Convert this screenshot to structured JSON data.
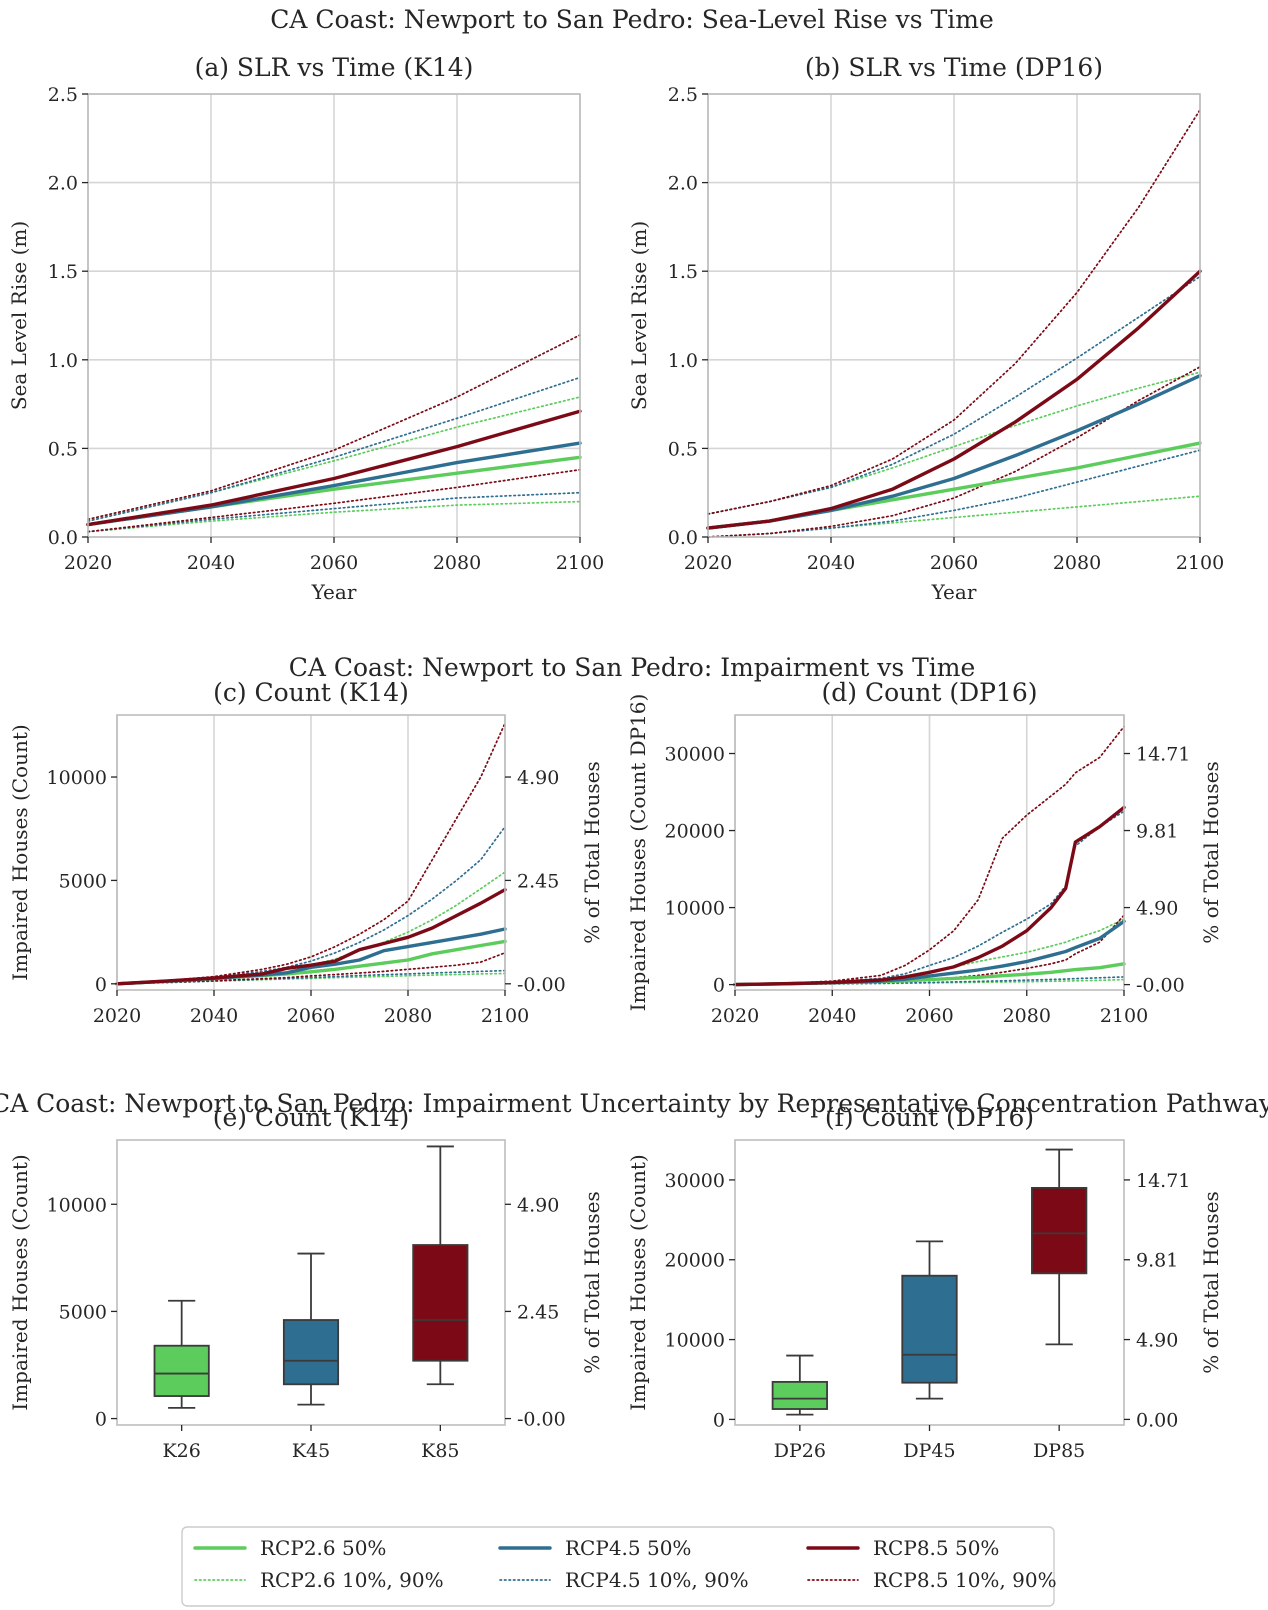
{
  "colors": {
    "rcp26": "#5ccc5c",
    "rcp45": "#2e6e91",
    "rcp85": "#7c0a16",
    "grid": "#d5d5d5",
    "axis": "#bdbdbd"
  },
  "figure": {
    "row1_title": "CA Coast: Newport to San Pedro: Sea-Level Rise vs Time",
    "row2_title": "CA Coast: Newport to San Pedro: Impairment vs Time",
    "row3_title": "CA Coast: Newport to San Pedro: Impairment Uncertainty by Representative Concentration Pathway"
  },
  "legend": {
    "items": [
      {
        "label": "RCP2.6 50%",
        "color": "#5ccc5c",
        "style": "solid"
      },
      {
        "label": "RCP4.5 50%",
        "color": "#2e6e91",
        "style": "solid"
      },
      {
        "label": "RCP8.5 50%",
        "color": "#7c0a16",
        "style": "solid"
      },
      {
        "label": "RCP2.6 10%, 90%",
        "color": "#5ccc5c",
        "style": "dotted"
      },
      {
        "label": "RCP4.5 10%, 90%",
        "color": "#2e6e91",
        "style": "dotted"
      },
      {
        "label": "RCP8.5 10%, 90%",
        "color": "#7c0a16",
        "style": "dotted"
      }
    ]
  },
  "chart_data": [
    {
      "id": "a",
      "type": "line",
      "title": "(a) SLR vs Time (K14)",
      "xlabel": "Year",
      "ylabel": "Sea Level Rise (m)",
      "xlim": [
        2020,
        2100
      ],
      "ylim": [
        0,
        2.5
      ],
      "xticks": [
        "2020",
        "2040",
        "2060",
        "2080",
        "2100"
      ],
      "yticks": [
        "0.0",
        "0.5",
        "1.0",
        "1.5",
        "2.0",
        "2.5"
      ],
      "x": [
        2020,
        2040,
        2060,
        2080,
        2100
      ],
      "series": [
        {
          "name": "RCP2.6 50%",
          "style": "solid",
          "color": "#5ccc5c",
          "values": [
            0.07,
            0.17,
            0.27,
            0.36,
            0.45
          ]
        },
        {
          "name": "RCP4.5 50%",
          "style": "solid",
          "color": "#2e6e91",
          "values": [
            0.07,
            0.17,
            0.29,
            0.42,
            0.53
          ]
        },
        {
          "name": "RCP8.5 50%",
          "style": "solid",
          "color": "#7c0a16",
          "values": [
            0.07,
            0.18,
            0.33,
            0.51,
            0.71
          ]
        },
        {
          "name": "RCP2.6 90%",
          "style": "dotted",
          "color": "#5ccc5c",
          "values": [
            0.09,
            0.25,
            0.43,
            0.62,
            0.79
          ]
        },
        {
          "name": "RCP2.6 10%",
          "style": "dotted",
          "color": "#5ccc5c",
          "values": [
            0.03,
            0.09,
            0.14,
            0.18,
            0.2
          ]
        },
        {
          "name": "RCP4.5 90%",
          "style": "dotted",
          "color": "#2e6e91",
          "values": [
            0.09,
            0.25,
            0.45,
            0.67,
            0.9
          ]
        },
        {
          "name": "RCP4.5 10%",
          "style": "dotted",
          "color": "#2e6e91",
          "values": [
            0.03,
            0.1,
            0.16,
            0.22,
            0.25
          ]
        },
        {
          "name": "RCP8.5 90%",
          "style": "dotted",
          "color": "#7c0a16",
          "values": [
            0.1,
            0.26,
            0.49,
            0.79,
            1.14
          ]
        },
        {
          "name": "RCP8.5 10%",
          "style": "dotted",
          "color": "#7c0a16",
          "values": [
            0.03,
            0.11,
            0.19,
            0.28,
            0.38
          ]
        }
      ]
    },
    {
      "id": "b",
      "type": "line",
      "title": "(b) SLR vs Time (DP16)",
      "xlabel": "Year",
      "ylabel": "Sea Level Rise (m)",
      "xlim": [
        2020,
        2100
      ],
      "ylim": [
        0,
        2.5
      ],
      "xticks": [
        "2020",
        "2040",
        "2060",
        "2080",
        "2100"
      ],
      "yticks": [
        "0.0",
        "0.5",
        "1.0",
        "1.5",
        "2.0",
        "2.5"
      ],
      "x": [
        2020,
        2030,
        2040,
        2050,
        2060,
        2070,
        2080,
        2090,
        2100
      ],
      "series": [
        {
          "name": "RCP2.6 50%",
          "style": "solid",
          "color": "#5ccc5c",
          "values": [
            0.05,
            0.09,
            0.15,
            0.21,
            0.27,
            0.33,
            0.39,
            0.46,
            0.53
          ]
        },
        {
          "name": "RCP4.5 50%",
          "style": "solid",
          "color": "#2e6e91",
          "values": [
            0.05,
            0.09,
            0.15,
            0.23,
            0.33,
            0.46,
            0.6,
            0.75,
            0.91
          ]
        },
        {
          "name": "RCP8.5 50%",
          "style": "solid",
          "color": "#7c0a16",
          "values": [
            0.05,
            0.09,
            0.16,
            0.27,
            0.44,
            0.65,
            0.89,
            1.18,
            1.5
          ]
        },
        {
          "name": "RCP2.6 90%",
          "style": "dotted",
          "color": "#5ccc5c",
          "values": [
            0.13,
            0.2,
            0.28,
            0.39,
            0.51,
            0.63,
            0.74,
            0.84,
            0.93
          ]
        },
        {
          "name": "RCP2.6 10%",
          "style": "dotted",
          "color": "#5ccc5c",
          "values": [
            0.0,
            0.02,
            0.05,
            0.08,
            0.11,
            0.14,
            0.17,
            0.2,
            0.23
          ]
        },
        {
          "name": "RCP4.5 90%",
          "style": "dotted",
          "color": "#2e6e91",
          "values": [
            0.13,
            0.2,
            0.28,
            0.41,
            0.58,
            0.79,
            1.01,
            1.24,
            1.47
          ]
        },
        {
          "name": "RCP4.5 10%",
          "style": "dotted",
          "color": "#2e6e91",
          "values": [
            0.0,
            0.02,
            0.05,
            0.09,
            0.15,
            0.22,
            0.31,
            0.4,
            0.49
          ]
        },
        {
          "name": "RCP8.5 90%",
          "style": "dotted",
          "color": "#7c0a16",
          "values": [
            0.13,
            0.2,
            0.29,
            0.44,
            0.66,
            0.98,
            1.38,
            1.86,
            2.41
          ]
        },
        {
          "name": "RCP8.5 10%",
          "style": "dotted",
          "color": "#7c0a16",
          "values": [
            0.0,
            0.02,
            0.06,
            0.12,
            0.22,
            0.37,
            0.56,
            0.77,
            0.96
          ]
        }
      ]
    },
    {
      "id": "c",
      "type": "line",
      "title": "(c) Count (K14)",
      "xlabel": "",
      "ylabel": "Impaired Houses (Count)",
      "ylabel2": "% of Total Houses",
      "xlim": [
        2020,
        2100
      ],
      "ylim": [
        -300,
        13000
      ],
      "xticks": [
        "2020",
        "2040",
        "2060",
        "2080",
        "2100"
      ],
      "yticks": [
        0,
        5000,
        10000
      ],
      "y2ticks": [
        {
          "at": 0,
          "label": "-0.00"
        },
        {
          "at": 5000,
          "label": "2.45"
        },
        {
          "at": 10000,
          "label": "4.90"
        }
      ],
      "x": [
        2020,
        2030,
        2040,
        2050,
        2055,
        2060,
        2065,
        2070,
        2075,
        2080,
        2085,
        2090,
        2095,
        2100
      ],
      "series": [
        {
          "name": "RCP2.6 50%",
          "style": "solid",
          "color": "#5ccc5c",
          "values": [
            0,
            120,
            250,
            400,
            480,
            580,
            700,
            850,
            1000,
            1150,
            1450,
            1650,
            1850,
            2050
          ]
        },
        {
          "name": "RCP4.5 50%",
          "style": "solid",
          "color": "#2e6e91",
          "values": [
            0,
            120,
            260,
            430,
            530,
            800,
            950,
            1150,
            1600,
            1800,
            2000,
            2200,
            2400,
            2650
          ]
        },
        {
          "name": "RCP8.5 50%",
          "style": "solid",
          "color": "#7c0a16",
          "values": [
            0,
            130,
            280,
            480,
            750,
            900,
            1100,
            1650,
            1950,
            2250,
            2700,
            3300,
            3900,
            4550
          ]
        },
        {
          "name": "RCP2.6 90%",
          "style": "dotted",
          "color": "#5ccc5c",
          "values": [
            0,
            130,
            300,
            550,
            700,
            900,
            1200,
            1600,
            2000,
            2500,
            3100,
            3800,
            4600,
            5400
          ]
        },
        {
          "name": "RCP2.6 10%",
          "style": "dotted",
          "color": "#5ccc5c",
          "values": [
            0,
            60,
            130,
            200,
            230,
            260,
            300,
            330,
            360,
            390,
            420,
            450,
            480,
            500
          ]
        },
        {
          "name": "RCP4.5 90%",
          "style": "dotted",
          "color": "#2e6e91",
          "values": [
            0,
            140,
            320,
            600,
            800,
            1100,
            1500,
            2000,
            2600,
            3300,
            4100,
            5000,
            6000,
            7600
          ]
        },
        {
          "name": "RCP4.5 10%",
          "style": "dotted",
          "color": "#2e6e91",
          "values": [
            0,
            60,
            130,
            220,
            260,
            300,
            350,
            400,
            440,
            480,
            520,
            560,
            600,
            640
          ]
        },
        {
          "name": "RCP8.5 90%",
          "style": "dotted",
          "color": "#7c0a16",
          "values": [
            0,
            150,
            350,
            700,
            950,
            1300,
            1800,
            2400,
            3100,
            4000,
            6000,
            8000,
            10000,
            12600
          ]
        },
        {
          "name": "RCP8.5 10%",
          "style": "dotted",
          "color": "#7c0a16",
          "values": [
            0,
            70,
            150,
            250,
            300,
            380,
            450,
            520,
            600,
            700,
            800,
            900,
            1050,
            1500
          ]
        }
      ]
    },
    {
      "id": "d",
      "type": "line",
      "title": "(d) Count (DP16)",
      "xlabel": "",
      "ylabel": "Impaired Houses (Count DP16)",
      "ylabel2": "% of Total Houses",
      "xlim": [
        2020,
        2100
      ],
      "ylim": [
        -700,
        35000
      ],
      "xticks": [
        "2020",
        "2040",
        "2060",
        "2080",
        "2100"
      ],
      "yticks": [
        0,
        10000,
        20000,
        30000
      ],
      "y2ticks": [
        {
          "at": 0,
          "label": "-0.00"
        },
        {
          "at": 10000,
          "label": "4.90"
        },
        {
          "at": 20000,
          "label": "9.81"
        },
        {
          "at": 30000,
          "label": "14.71"
        }
      ],
      "x": [
        2020,
        2030,
        2040,
        2050,
        2055,
        2060,
        2065,
        2070,
        2075,
        2080,
        2085,
        2088,
        2090,
        2095,
        2100
      ],
      "series": [
        {
          "name": "RCP2.6 50%",
          "style": "solid",
          "color": "#5ccc5c",
          "values": [
            0,
            100,
            250,
            400,
            500,
            650,
            800,
            950,
            1150,
            1350,
            1600,
            1800,
            1950,
            2200,
            2700
          ]
        },
        {
          "name": "RCP4.5 50%",
          "style": "solid",
          "color": "#2e6e91",
          "values": [
            0,
            100,
            250,
            450,
            700,
            1100,
            1500,
            1900,
            2400,
            3000,
            3800,
            4300,
            4800,
            6000,
            8200
          ]
        },
        {
          "name": "RCP8.5 50%",
          "style": "solid",
          "color": "#7c0a16",
          "values": [
            0,
            120,
            280,
            600,
            1000,
            1600,
            2300,
            3500,
            5000,
            7000,
            10000,
            12500,
            18500,
            20500,
            23000
          ]
        },
        {
          "name": "RCP2.6 90%",
          "style": "dotted",
          "color": "#5ccc5c",
          "values": [
            0,
            130,
            350,
            700,
            1100,
            1700,
            2300,
            3000,
            3600,
            4200,
            5000,
            5500,
            6000,
            7000,
            8500
          ]
        },
        {
          "name": "RCP2.6 10%",
          "style": "dotted",
          "color": "#5ccc5c",
          "values": [
            0,
            40,
            100,
            150,
            180,
            220,
            260,
            300,
            340,
            380,
            430,
            470,
            500,
            560,
            650
          ]
        },
        {
          "name": "RCP4.5 90%",
          "style": "dotted",
          "color": "#2e6e91",
          "values": [
            0,
            150,
            400,
            800,
            1400,
            2500,
            3500,
            5000,
            6800,
            8500,
            10500,
            12800,
            18000,
            20500,
            22500
          ]
        },
        {
          "name": "RCP4.5 10%",
          "style": "dotted",
          "color": "#2e6e91",
          "values": [
            0,
            40,
            100,
            170,
            220,
            280,
            350,
            420,
            500,
            580,
            660,
            720,
            780,
            880,
            1000
          ]
        },
        {
          "name": "RCP8.5 90%",
          "style": "dotted",
          "color": "#7c0a16",
          "values": [
            0,
            160,
            450,
            1200,
            2500,
            4500,
            7000,
            11000,
            19000,
            22000,
            24500,
            26000,
            27500,
            29500,
            33500
          ]
        },
        {
          "name": "RCP8.5 10%",
          "style": "dotted",
          "color": "#7c0a16",
          "values": [
            0,
            60,
            150,
            300,
            450,
            650,
            900,
            1200,
            1600,
            2100,
            2700,
            3200,
            4000,
            5500,
            9000
          ]
        }
      ]
    },
    {
      "id": "e",
      "type": "box",
      "title": "(e) Count (K14)",
      "xlabel": "",
      "ylabel": "Impaired Houses (Count)",
      "ylabel2": "% of Total Houses",
      "ylim": [
        -300,
        13000
      ],
      "yticks": [
        0,
        5000,
        10000
      ],
      "y2ticks": [
        {
          "at": 0,
          "label": "-0.00"
        },
        {
          "at": 5000,
          "label": "2.45"
        },
        {
          "at": 10000,
          "label": "4.90"
        }
      ],
      "categories": [
        "K26",
        "K45",
        "K85"
      ],
      "boxes": [
        {
          "category": "K26",
          "color": "#5ccc5c",
          "whisker_low": 500,
          "q1": 1050,
          "median": 2100,
          "q3": 3400,
          "whisker_high": 5500
        },
        {
          "category": "K45",
          "color": "#2e6e91",
          "whisker_low": 650,
          "q1": 1600,
          "median": 2700,
          "q3": 4600,
          "whisker_high": 7700
        },
        {
          "category": "K85",
          "color": "#7c0a16",
          "whisker_low": 1600,
          "q1": 2700,
          "median": 4600,
          "q3": 8100,
          "whisker_high": 12700
        }
      ]
    },
    {
      "id": "f",
      "type": "box",
      "title": "(f) Count (DP16)",
      "xlabel": "",
      "ylabel": "Impaired Houses (Count)",
      "ylabel2": "% of Total Houses",
      "ylim": [
        -700,
        35000
      ],
      "yticks": [
        0,
        10000,
        20000,
        30000
      ],
      "y2ticks": [
        {
          "at": 0,
          "label": "0.00"
        },
        {
          "at": 10000,
          "label": "4.90"
        },
        {
          "at": 20000,
          "label": "9.81"
        },
        {
          "at": 30000,
          "label": "14.71"
        }
      ],
      "categories": [
        "DP26",
        "DP45",
        "DP85"
      ],
      "boxes": [
        {
          "category": "DP26",
          "color": "#5ccc5c",
          "whisker_low": 600,
          "q1": 1300,
          "median": 2600,
          "q3": 4700,
          "whisker_high": 8000
        },
        {
          "category": "DP45",
          "color": "#2e6e91",
          "whisker_low": 2600,
          "q1": 4600,
          "median": 8100,
          "q3": 18000,
          "whisker_high": 22300
        },
        {
          "category": "DP85",
          "color": "#7c0a16",
          "whisker_low": 9400,
          "q1": 18300,
          "median": 23300,
          "q3": 29000,
          "whisker_high": 33800
        }
      ]
    }
  ]
}
